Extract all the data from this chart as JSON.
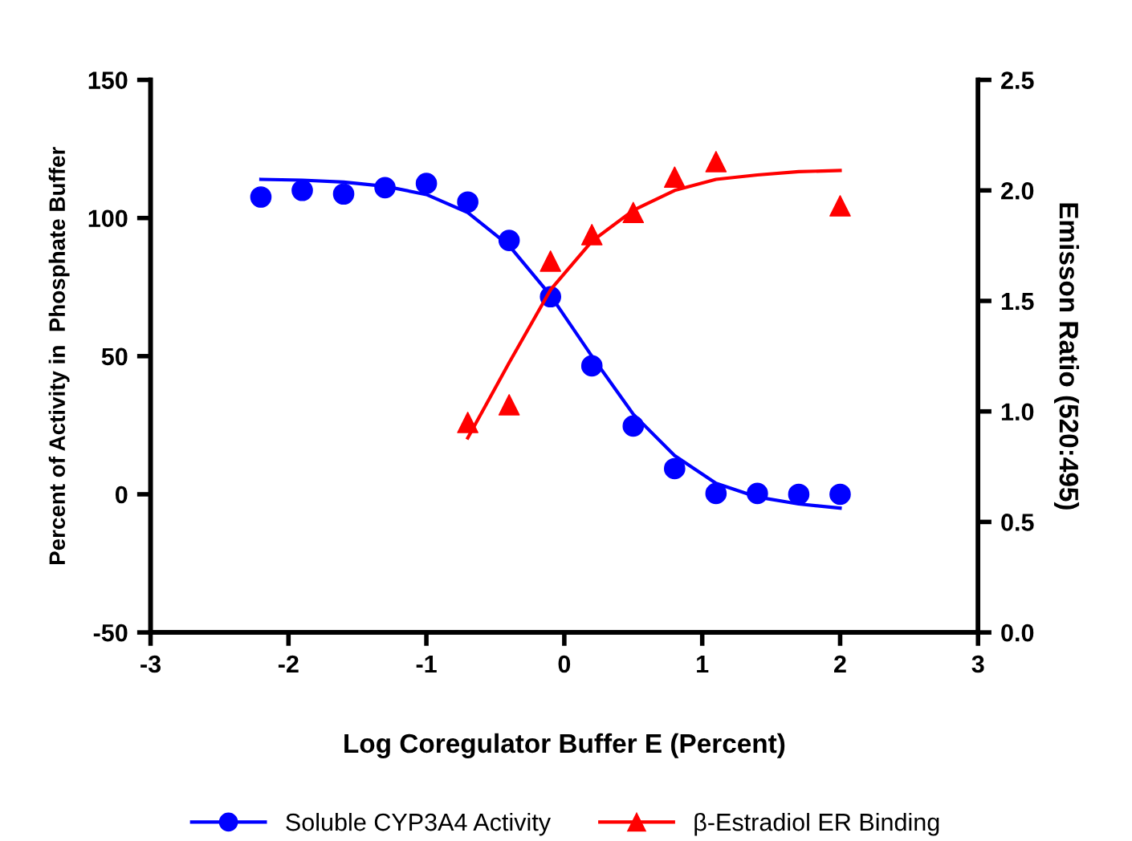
{
  "chart_data": {
    "type": "scatter",
    "xlabel": "Log Coregulator Buffer E (Percent)",
    "ylabel": "Percent of Activity in  Phosphate Buffer",
    "y2label": "Emisson Ratio (520:495)",
    "xlim": [
      -3,
      3
    ],
    "xticks": [
      -3,
      -2,
      -1,
      0,
      1,
      2,
      3
    ],
    "ylim": [
      -50,
      150
    ],
    "yticks": [
      -50,
      0,
      50,
      100,
      150
    ],
    "y2lim": [
      0,
      2.5
    ],
    "y2ticks": [
      {
        "value": 0,
        "label": "0.0"
      },
      {
        "value": 0.5,
        "label": "0.5"
      },
      {
        "value": 1,
        "label": "1.0"
      },
      {
        "value": 1.5,
        "label": "1.5"
      },
      {
        "value": 2,
        "label": "2.0"
      },
      {
        "value": 2.5,
        "label": "2.5"
      }
    ],
    "legend": "bottom",
    "grid": false,
    "series": [
      {
        "name": "Soluble CYP3A4 Activity",
        "color": "#0000ff",
        "marker": "circle",
        "x": [
          -2.2,
          -1.9,
          -1.6,
          -1.3,
          -1.0,
          -0.7,
          -0.4,
          -0.1,
          0.2,
          0.5,
          0.8,
          1.1,
          1.4,
          1.7,
          2.0
        ],
        "values": [
          107.6,
          110,
          108.7,
          111,
          112.5,
          105.8,
          91.9,
          71.5,
          46.5,
          24.7,
          9.3,
          0.3,
          0.3,
          0,
          0
        ]
      },
      {
        "type": "line",
        "color": "#0000ff",
        "x": [
          -2.2,
          -1.9,
          -1.6,
          -1.3,
          -1.0,
          -0.7,
          -0.4,
          -0.1,
          0.2,
          0.5,
          0.8,
          1.1,
          1.4,
          1.7,
          2.0
        ],
        "values": [
          114,
          113.7,
          113,
          111.5,
          108.5,
          102,
          90,
          72,
          50,
          29,
          14,
          4,
          -1,
          -3.5,
          -5
        ]
      },
      {
        "name": "β-Estradiol ER Binding",
        "color": "#ff0000",
        "marker": "triangle",
        "axis": "y2",
        "x": [
          -0.7,
          -0.4,
          -0.1,
          0.2,
          0.5,
          0.8,
          1.1,
          2.0
        ],
        "values": [
          0.95,
          1.03,
          1.68,
          1.8,
          1.9,
          2.06,
          2.13,
          1.93
        ]
      },
      {
        "type": "line",
        "color": "#ff0000",
        "axis": "y2",
        "x": [
          -0.7,
          -0.4,
          -0.1,
          0.2,
          0.5,
          0.8,
          1.1,
          1.4,
          1.7,
          2.0
        ],
        "values": [
          0.88,
          1.22,
          1.55,
          1.77,
          1.91,
          2.0,
          2.05,
          2.07,
          2.085,
          2.09
        ]
      }
    ]
  }
}
